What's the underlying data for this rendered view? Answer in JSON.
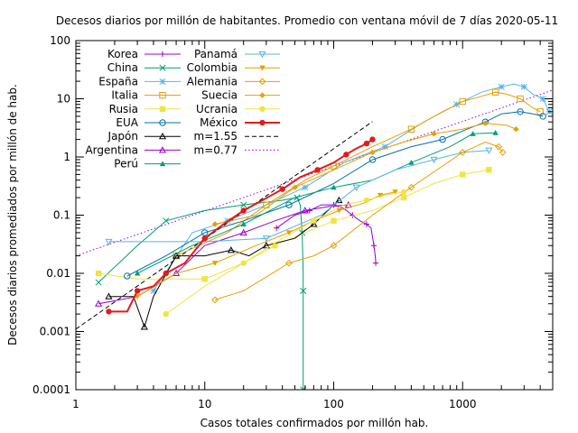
{
  "chart_data": {
    "type": "line",
    "title": "Decesos diarios por millón de habitantes. Promedio con ventana móvil de 7 días 2020-05-11",
    "xlabel": "Casos totales confirmados por millón hab.",
    "ylabel": "Decesos diarios promediados por millón de hab.",
    "x_scale": "log",
    "y_scale": "log",
    "xlim": [
      1,
      5000
    ],
    "ylim": [
      0.0001,
      100
    ],
    "x_ticks": [
      {
        "v": 1,
        "label": "1"
      },
      {
        "v": 10,
        "label": "10"
      },
      {
        "v": 100,
        "label": "100"
      },
      {
        "v": 1000,
        "label": "1000"
      }
    ],
    "y_ticks": [
      {
        "v": 0.0001,
        "label": "0.0001"
      },
      {
        "v": 0.001,
        "label": "0.001"
      },
      {
        "v": 0.01,
        "label": "0.01"
      },
      {
        "v": 0.1,
        "label": "0.1"
      },
      {
        "v": 1,
        "label": "1"
      },
      {
        "v": 10,
        "label": "10"
      },
      {
        "v": 100,
        "label": "100"
      }
    ],
    "grid": false,
    "legend_position": "top-left",
    "series": [
      {
        "name": "Korea",
        "color": "#9400d3",
        "marker": "plus",
        "points": [
          [
            36,
            0.06
          ],
          [
            50,
            0.1
          ],
          [
            65,
            0.12
          ],
          [
            80,
            0.15
          ],
          [
            100,
            0.15
          ],
          [
            120,
            0.13
          ],
          [
            140,
            0.1
          ],
          [
            160,
            0.08
          ],
          [
            180,
            0.07
          ],
          [
            195,
            0.06
          ],
          [
            205,
            0.03
          ],
          [
            210,
            0.02
          ],
          [
            212,
            0.015
          ]
        ]
      },
      {
        "name": "China",
        "color": "#009e73",
        "marker": "x",
        "points": [
          [
            1.5,
            0.007
          ],
          [
            3,
            0.03
          ],
          [
            5,
            0.08
          ],
          [
            10,
            0.12
          ],
          [
            20,
            0.15
          ],
          [
            40,
            0.18
          ],
          [
            52,
            0.2
          ],
          [
            55,
            0.15
          ],
          [
            57,
            0.05
          ],
          [
            58,
            0.01
          ],
          [
            58,
            0.005
          ],
          [
            58,
            0.002
          ],
          [
            58,
            0.0001
          ]
        ]
      },
      {
        "name": "España",
        "color": "#56b4e9",
        "marker": "star",
        "points": [
          [
            4,
            0.005
          ],
          [
            8,
            0.05
          ],
          [
            15,
            0.08
          ],
          [
            30,
            0.15
          ],
          [
            60,
            0.3
          ],
          [
            120,
            0.8
          ],
          [
            250,
            1.5
          ],
          [
            500,
            4
          ],
          [
            900,
            8
          ],
          [
            1400,
            13
          ],
          [
            2000,
            16
          ],
          [
            2500,
            18
          ],
          [
            3000,
            16
          ],
          [
            3500,
            12
          ],
          [
            4200,
            10
          ],
          [
            4700,
            6
          ]
        ]
      },
      {
        "name": "Italia",
        "color": "#e69f00",
        "marker": "square-open",
        "points": [
          [
            6,
            0.02
          ],
          [
            15,
            0.05
          ],
          [
            30,
            0.15
          ],
          [
            60,
            0.4
          ],
          [
            100,
            0.7
          ],
          [
            200,
            1.5
          ],
          [
            400,
            3
          ],
          [
            700,
            6
          ],
          [
            1000,
            9
          ],
          [
            1400,
            11
          ],
          [
            1800,
            13
          ],
          [
            2200,
            12
          ],
          [
            2800,
            10
          ],
          [
            3500,
            7
          ],
          [
            4000,
            6
          ]
        ]
      },
      {
        "name": "Rusia",
        "color": "#f0e442",
        "marker": "square",
        "points": [
          [
            1.5,
            0.01
          ],
          [
            3,
            0.008
          ],
          [
            10,
            0.008
          ],
          [
            20,
            0.015
          ],
          [
            35,
            0.03
          ],
          [
            60,
            0.05
          ],
          [
            100,
            0.08
          ],
          [
            200,
            0.12
          ],
          [
            350,
            0.2
          ],
          [
            600,
            0.35
          ],
          [
            1000,
            0.5
          ],
          [
            1600,
            0.6
          ]
        ]
      },
      {
        "name": "EUA",
        "color": "#0072b2",
        "marker": "circle-open",
        "points": [
          [
            2.5,
            0.009
          ],
          [
            5,
            0.02
          ],
          [
            10,
            0.05
          ],
          [
            20,
            0.08
          ],
          [
            45,
            0.15
          ],
          [
            100,
            0.35
          ],
          [
            200,
            0.9
          ],
          [
            400,
            1.5
          ],
          [
            700,
            2
          ],
          [
            1000,
            2.8
          ],
          [
            1500,
            4
          ],
          [
            2000,
            5.5
          ],
          [
            2800,
            6
          ],
          [
            3500,
            5.5
          ],
          [
            4200,
            5
          ]
        ]
      },
      {
        "name": "Japón",
        "color": "#000000",
        "marker": "triangle-open",
        "points": [
          [
            1.8,
            0.004
          ],
          [
            2.8,
            0.004
          ],
          [
            3.4,
            0.0012
          ],
          [
            4,
            0.004
          ],
          [
            6,
            0.02
          ],
          [
            10,
            0.02
          ],
          [
            16,
            0.025
          ],
          [
            22,
            0.02
          ],
          [
            30,
            0.03
          ],
          [
            50,
            0.04
          ],
          [
            70,
            0.07
          ],
          [
            90,
            0.12
          ],
          [
            110,
            0.18
          ]
        ]
      },
      {
        "name": "Argentina",
        "color": "#9400d3",
        "marker": "triangle-open",
        "points": [
          [
            1.5,
            0.003
          ],
          [
            3,
            0.004
          ],
          [
            6,
            0.01
          ],
          [
            10,
            0.03
          ],
          [
            20,
            0.05
          ],
          [
            35,
            0.08
          ],
          [
            60,
            0.12
          ],
          [
            90,
            0.14
          ],
          [
            130,
            0.15
          ]
        ]
      },
      {
        "name": "Perú",
        "color": "#009e73",
        "marker": "triangle",
        "points": [
          [
            3,
            0.01
          ],
          [
            8,
            0.03
          ],
          [
            20,
            0.07
          ],
          [
            50,
            0.2
          ],
          [
            100,
            0.3
          ],
          [
            200,
            0.4
          ],
          [
            400,
            0.8
          ],
          [
            800,
            1.5
          ],
          [
            1200,
            2.5
          ],
          [
            1800,
            2.6
          ]
        ]
      },
      {
        "name": "Panamá",
        "color": "#56b4e9",
        "marker": "triangle-down-open",
        "points": [
          [
            1.8,
            0.035
          ],
          [
            10,
            0.035
          ],
          [
            30,
            0.04
          ],
          [
            80,
            0.1
          ],
          [
            150,
            0.3
          ],
          [
            300,
            0.6
          ],
          [
            600,
            0.9
          ],
          [
            1000,
            1.2
          ],
          [
            1600,
            1.3
          ]
        ]
      },
      {
        "name": "Colombia",
        "color": "#e69f00",
        "marker": "triangle-down",
        "points": [
          [
            3,
            0.004
          ],
          [
            6,
            0.01
          ],
          [
            12,
            0.015
          ],
          [
            25,
            0.03
          ],
          [
            45,
            0.05
          ],
          [
            70,
            0.08
          ],
          [
            110,
            0.12
          ],
          [
            170,
            0.16
          ],
          [
            230,
            0.22
          ],
          [
            300,
            0.25
          ]
        ]
      },
      {
        "name": "Alemania",
        "color": "#e69f00",
        "marker": "diamond-open",
        "points": [
          [
            12,
            0.0035
          ],
          [
            20,
            0.005
          ],
          [
            45,
            0.015
          ],
          [
            70,
            0.02
          ],
          [
            100,
            0.03
          ],
          [
            200,
            0.1
          ],
          [
            400,
            0.3
          ],
          [
            700,
            0.7
          ],
          [
            1000,
            1.2
          ],
          [
            1500,
            1.8
          ],
          [
            1900,
            1.5
          ],
          [
            2050,
            1.2
          ]
        ]
      },
      {
        "name": "Suecia",
        "color": "#e69f00",
        "marker": "diamond",
        "points": [
          [
            12,
            0.07
          ],
          [
            25,
            0.1
          ],
          [
            50,
            0.3
          ],
          [
            100,
            0.6
          ],
          [
            200,
            1.2
          ],
          [
            350,
            1.8
          ],
          [
            600,
            2.5
          ],
          [
            1000,
            3
          ],
          [
            1500,
            3.8
          ],
          [
            2200,
            3.5
          ],
          [
            2600,
            3
          ]
        ]
      },
      {
        "name": "Ucrania",
        "color": "#f0e442",
        "marker": "circle",
        "points": [
          [
            5,
            0.002
          ],
          [
            10,
            0.006
          ],
          [
            20,
            0.015
          ],
          [
            40,
            0.04
          ],
          [
            70,
            0.08
          ],
          [
            120,
            0.15
          ],
          [
            180,
            0.18
          ],
          [
            250,
            0.22
          ],
          [
            350,
            0.25
          ]
        ]
      },
      {
        "name": "México",
        "color": "#e41a1c",
        "marker": "circle",
        "points": [
          [
            1.8,
            0.0022
          ],
          [
            2.5,
            0.0022
          ],
          [
            3,
            0.005
          ],
          [
            4,
            0.006
          ],
          [
            5,
            0.01
          ],
          [
            7,
            0.015
          ],
          [
            10,
            0.04
          ],
          [
            14,
            0.07
          ],
          [
            20,
            0.12
          ],
          [
            28,
            0.18
          ],
          [
            40,
            0.28
          ],
          [
            55,
            0.45
          ],
          [
            75,
            0.6
          ],
          [
            100,
            0.8
          ],
          [
            125,
            1.1
          ],
          [
            150,
            1.4
          ],
          [
            180,
            1.7
          ],
          [
            200,
            2
          ]
        ]
      }
    ],
    "fit_lines": [
      {
        "name": "m=1.55",
        "color": "#000000",
        "dash": "dashed",
        "slope": 1.55,
        "x0": 1,
        "y0": 0.0011,
        "x_end": 200
      },
      {
        "name": "m=0.77",
        "color": "#9400d3",
        "dash": "dotted",
        "slope": 0.77,
        "x0": 1,
        "y0": 0.02,
        "x_end": 5000
      }
    ]
  }
}
